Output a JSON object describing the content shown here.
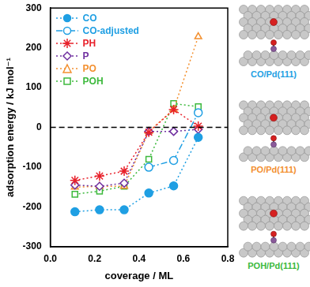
{
  "chart_data": {
    "type": "line",
    "x_label": "coverage / ML",
    "y_label": "adsorption energy / kJ mol⁻¹",
    "xlim": [
      0.0,
      0.8
    ],
    "xticks": [
      {
        "value": 0.0,
        "label": "0.0"
      },
      0.2,
      0.4,
      0.6,
      0.8
    ],
    "ylim": [
      -300,
      300
    ],
    "yticks": [
      -300,
      -200,
      -100,
      0,
      100,
      200,
      300
    ],
    "grid": false,
    "legend": "upper left",
    "hline": 0,
    "x": [
      0.111,
      0.222,
      0.333,
      0.444,
      0.556,
      0.667
    ],
    "series": [
      {
        "name": "CO",
        "color": "#1f9fe3",
        "marker": "circle",
        "line_style": "dotted",
        "values": [
          -212,
          -207,
          -207,
          -165,
          -147,
          -25
        ]
      },
      {
        "name": "CO-adjusted",
        "color": "#1f9fe3",
        "marker": "open_circle",
        "line_style": "dashdot",
        "values": [
          null,
          null,
          null,
          -100,
          -83,
          37
        ]
      },
      {
        "name": "PH",
        "color": "#e8202a",
        "marker": "star",
        "line_style": "dotted",
        "values": [
          -133,
          -122,
          -110,
          -12,
          45,
          3
        ]
      },
      {
        "name": "P",
        "color": "#7030a0",
        "marker": "open_diamond",
        "line_style": "dotted",
        "values": [
          -145,
          -148,
          -140,
          -10,
          -10,
          -5
        ]
      },
      {
        "name": "PO",
        "color": "#f39030",
        "marker": "open_triangle",
        "line_style": "dotted",
        "values": [
          -150,
          -148,
          -148,
          -10,
          45,
          228
        ]
      },
      {
        "name": "POH",
        "color": "#3cb93c",
        "marker": "open_square",
        "line_style": "dotted",
        "values": [
          -168,
          -160,
          -148,
          -80,
          60,
          52
        ]
      }
    ],
    "panels": [
      {
        "label": "CO/Pd(111)",
        "color": "#1f9fe3"
      },
      {
        "label": "PO/Pd(111)",
        "color": "#f39030"
      },
      {
        "label": "POH/Pd(111)",
        "color": "#3cb93c"
      }
    ]
  }
}
